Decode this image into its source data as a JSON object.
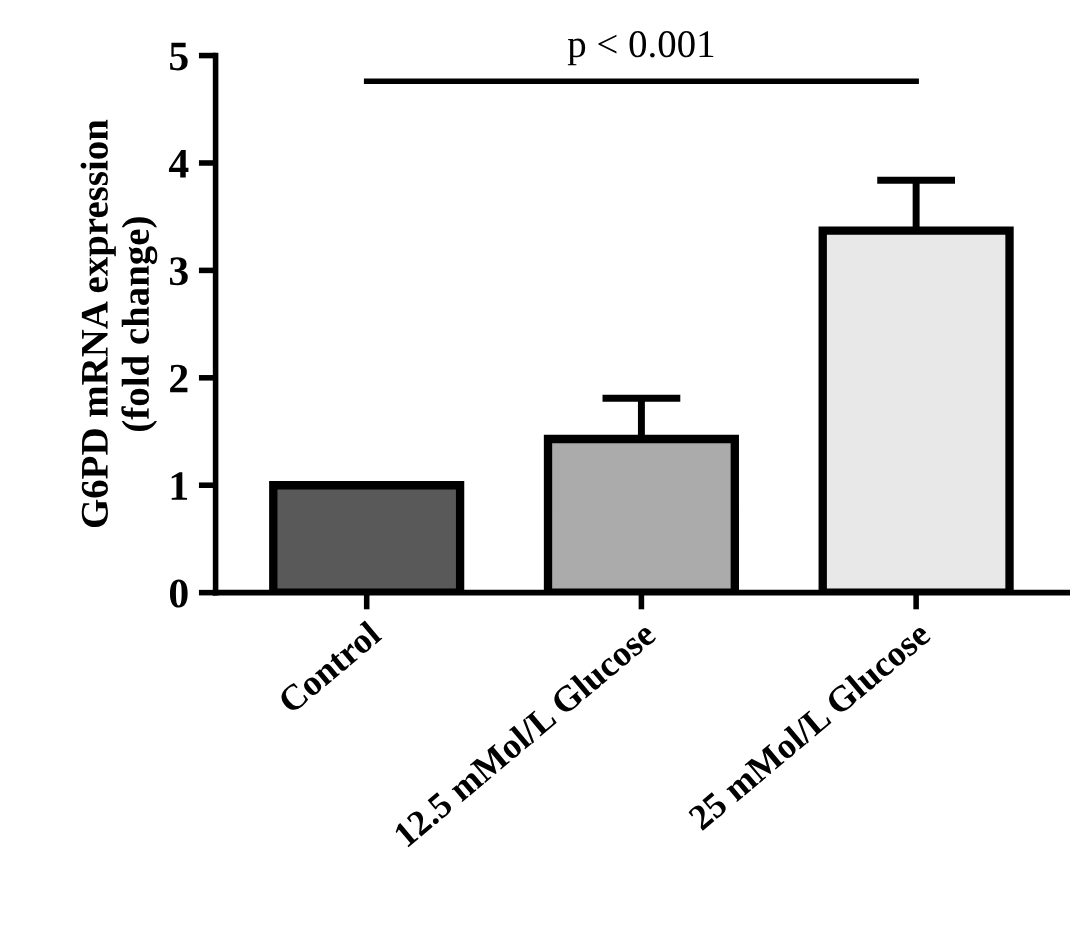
{
  "chart_data": {
    "type": "bar",
    "ylabel": "G6PD mRNA expression\n(fold change)",
    "categories": [
      "Control",
      "12.5 mMol/L Glucose",
      "25 mMol/L Glucose"
    ],
    "values": [
      1.0,
      1.43,
      3.37
    ],
    "errors": [
      null,
      [
        1.43,
        1.81
      ],
      [
        3.37,
        3.84
      ]
    ],
    "colors": [
      "#595959",
      "#ababab",
      "#e8e8e8"
    ],
    "ylim": [
      0,
      5
    ],
    "yticks": [
      0,
      1,
      2,
      3,
      4,
      5
    ],
    "grid": false,
    "legend": false,
    "annotations": [
      "p < 0.001"
    ]
  }
}
